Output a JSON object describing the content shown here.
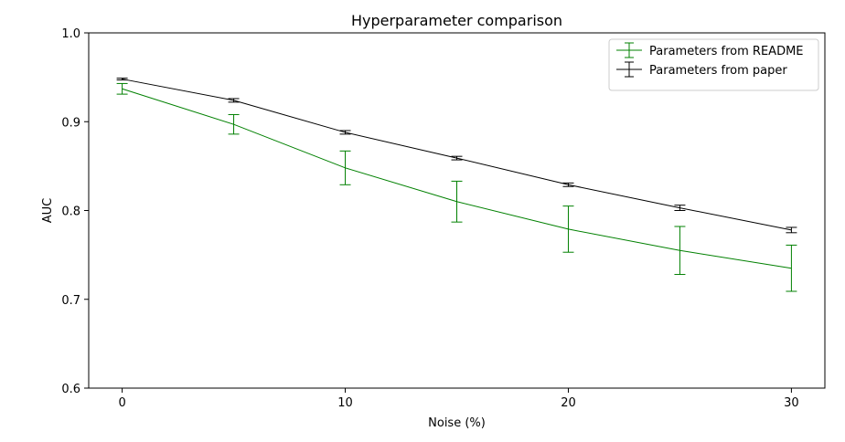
{
  "chart_data": {
    "type": "line",
    "title": "Hyperparameter comparison",
    "xlabel": "Noise (%)",
    "ylabel": "AUC",
    "xlim": [
      -1.5,
      31.5
    ],
    "ylim": [
      0.6,
      1.0
    ],
    "xticks": [
      0,
      10,
      20,
      30
    ],
    "yticks": [
      0.6,
      0.7,
      0.8,
      0.9,
      1.0
    ],
    "grid": false,
    "legend_position": "top-right",
    "x": [
      0,
      5,
      10,
      15,
      20,
      25,
      30
    ],
    "series": [
      {
        "name": "Parameters from README",
        "color": "#008000",
        "values": [
          0.937,
          0.897,
          0.848,
          0.81,
          0.779,
          0.755,
          0.735
        ],
        "errors": [
          0.006,
          0.011,
          0.019,
          0.023,
          0.026,
          0.027,
          0.026
        ]
      },
      {
        "name": "Parameters from paper",
        "color": "#000000",
        "values": [
          0.948,
          0.924,
          0.888,
          0.859,
          0.829,
          0.803,
          0.778
        ],
        "errors": [
          0.001,
          0.002,
          0.002,
          0.002,
          0.002,
          0.003,
          0.003
        ]
      }
    ]
  }
}
